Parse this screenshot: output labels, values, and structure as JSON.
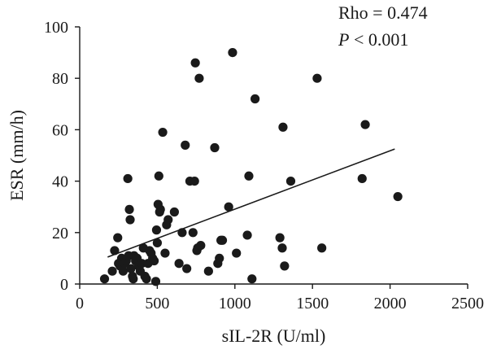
{
  "chart_data": {
    "type": "scatter",
    "xlabel": "sIL-2R (U/ml)",
    "ylabel": "ESR (mm/h)",
    "xlim": [
      0,
      2500
    ],
    "ylim": [
      0,
      100
    ],
    "xticks": [
      0,
      500,
      1000,
      1500,
      2000,
      2500
    ],
    "yticks": [
      0,
      20,
      40,
      60,
      80,
      100
    ],
    "grid": false,
    "annotations": {
      "rho": "Rho = 0.474",
      "p_italic": "P",
      "p_rest": " < 0.001"
    },
    "fit_line": {
      "x": [
        180,
        2030
      ],
      "y": [
        10.5,
        52.5
      ]
    },
    "points": [
      [
        160,
        2
      ],
      [
        210,
        5
      ],
      [
        225,
        13
      ],
      [
        245,
        18
      ],
      [
        250,
        8
      ],
      [
        260,
        7
      ],
      [
        270,
        10
      ],
      [
        280,
        5
      ],
      [
        290,
        8
      ],
      [
        300,
        9
      ],
      [
        310,
        41
      ],
      [
        315,
        11
      ],
      [
        320,
        29
      ],
      [
        325,
        25
      ],
      [
        330,
        6
      ],
      [
        340,
        3
      ],
      [
        345,
        2
      ],
      [
        350,
        11
      ],
      [
        360,
        9
      ],
      [
        370,
        10
      ],
      [
        380,
        7
      ],
      [
        390,
        5
      ],
      [
        400,
        8
      ],
      [
        410,
        14
      ],
      [
        420,
        3
      ],
      [
        430,
        2
      ],
      [
        440,
        8
      ],
      [
        450,
        13
      ],
      [
        460,
        12
      ],
      [
        470,
        10
      ],
      [
        480,
        9
      ],
      [
        490,
        1
      ],
      [
        495,
        21
      ],
      [
        500,
        16
      ],
      [
        505,
        31
      ],
      [
        510,
        42
      ],
      [
        515,
        28
      ],
      [
        520,
        29
      ],
      [
        535,
        59
      ],
      [
        550,
        12
      ],
      [
        560,
        23
      ],
      [
        570,
        25
      ],
      [
        610,
        28
      ],
      [
        640,
        8
      ],
      [
        660,
        20
      ],
      [
        680,
        54
      ],
      [
        690,
        6
      ],
      [
        710,
        40
      ],
      [
        730,
        20
      ],
      [
        740,
        40
      ],
      [
        745,
        86
      ],
      [
        755,
        13
      ],
      [
        760,
        14
      ],
      [
        770,
        80
      ],
      [
        780,
        15
      ],
      [
        830,
        5
      ],
      [
        870,
        53
      ],
      [
        890,
        8
      ],
      [
        900,
        10
      ],
      [
        910,
        17
      ],
      [
        920,
        17
      ],
      [
        960,
        30
      ],
      [
        985,
        90
      ],
      [
        1010,
        12
      ],
      [
        1080,
        19
      ],
      [
        1090,
        42
      ],
      [
        1110,
        2
      ],
      [
        1130,
        72
      ],
      [
        1290,
        18
      ],
      [
        1305,
        14
      ],
      [
        1310,
        61
      ],
      [
        1320,
        7
      ],
      [
        1360,
        40
      ],
      [
        1530,
        80
      ],
      [
        1560,
        14
      ],
      [
        1820,
        41
      ],
      [
        1840,
        62
      ],
      [
        2050,
        34
      ]
    ]
  }
}
